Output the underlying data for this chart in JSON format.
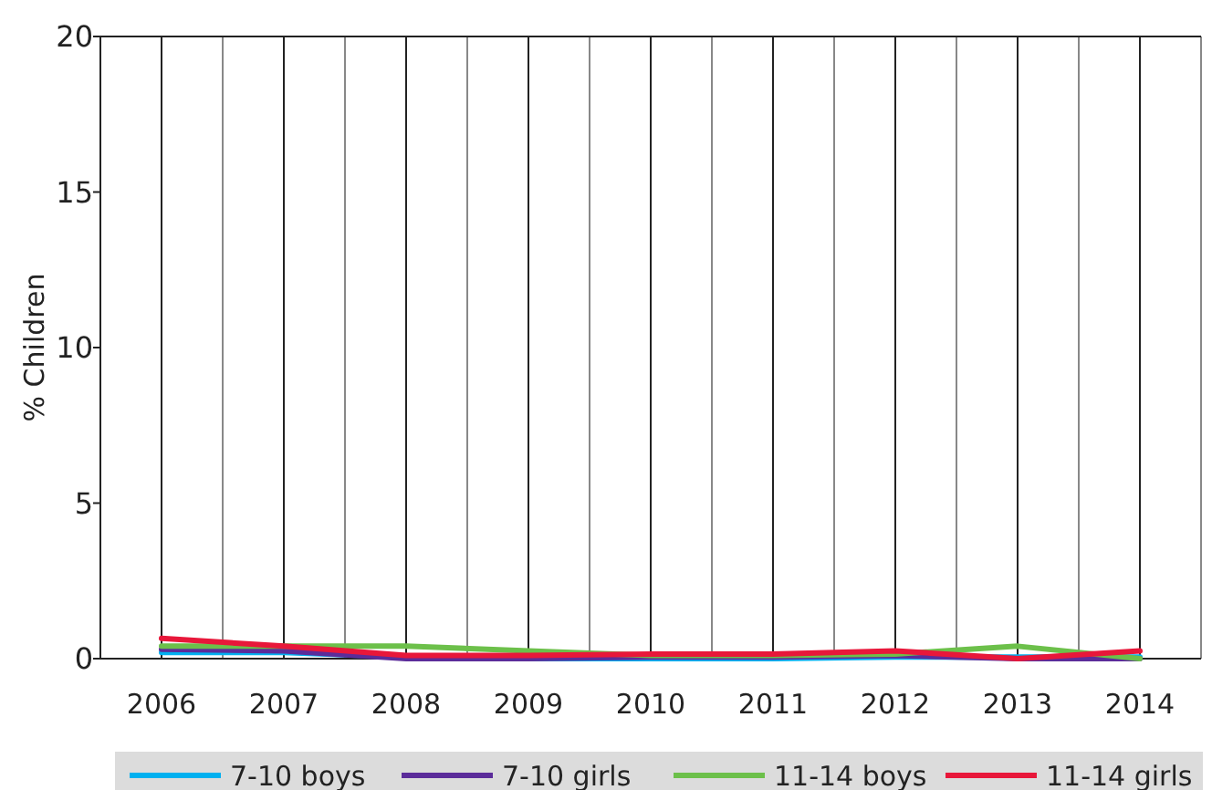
{
  "chart_data": {
    "type": "line",
    "ylabel": "% Children",
    "x": [
      2006,
      2007,
      2008,
      2009,
      2010,
      2011,
      2012,
      2013,
      2014
    ],
    "xlim": [
      2005.5,
      2014.5
    ],
    "xticks": [
      {
        "value": 2005.5,
        "label": null
      },
      2006,
      {
        "value": 2006.5,
        "label": null
      },
      2007,
      {
        "value": 2007.5,
        "label": null
      },
      2008,
      {
        "value": 2008.5,
        "label": null
      },
      2009,
      {
        "value": 2009.5,
        "label": null
      },
      2010,
      {
        "value": 2010.5,
        "label": null
      },
      2011,
      {
        "value": 2011.5,
        "label": null
      },
      2012,
      {
        "value": 2012.5,
        "label": null
      },
      2013,
      {
        "value": 2013.5,
        "label": null
      },
      2014,
      {
        "value": 2014.5,
        "label": null
      }
    ],
    "ylim": [
      0,
      20
    ],
    "yticks": [
      0,
      5,
      10,
      15,
      20
    ],
    "grid": "x",
    "legend": "bottom",
    "marker": "none",
    "line_style": "solid",
    "series": [
      {
        "name": "7-10 boys",
        "color": "#00b0f0",
        "values": [
          0.2,
          0.2,
          0.05,
          0,
          0,
          0,
          0.05,
          0.05,
          0.05
        ]
      },
      {
        "name": "7-10 girls",
        "color": "#5b2c9a",
        "values": [
          0.3,
          0.25,
          0,
          0,
          0.05,
          0.05,
          0.1,
          0,
          0
        ]
      },
      {
        "name": "11-14 boys",
        "color": "#6cc04a",
        "values": [
          0.4,
          0.4,
          0.4,
          0.25,
          0.1,
          0.1,
          0.15,
          0.4,
          0
        ]
      },
      {
        "name": "11-14 girls",
        "color": "#e8173a",
        "values": [
          0.65,
          0.4,
          0.1,
          0.1,
          0.15,
          0.15,
          0.25,
          0,
          0.25
        ]
      }
    ]
  }
}
